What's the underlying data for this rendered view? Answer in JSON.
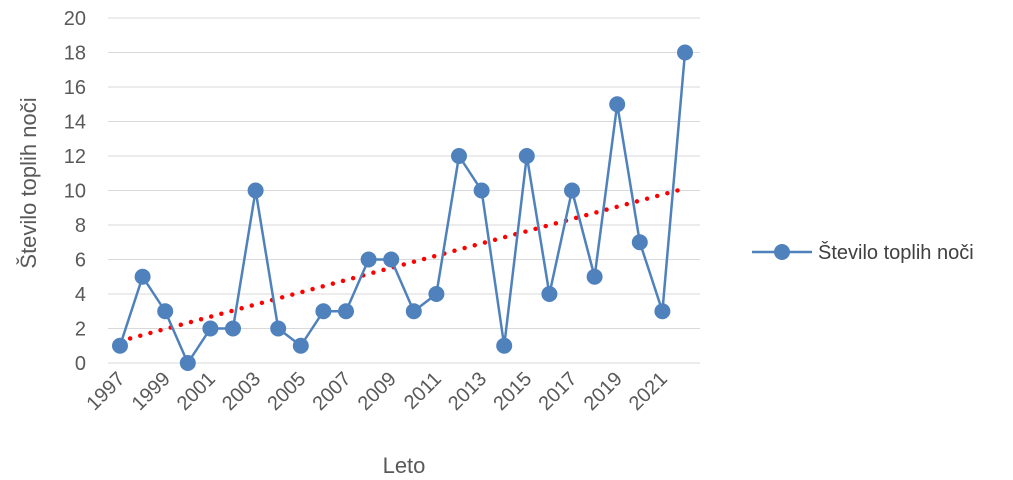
{
  "chart_data": {
    "type": "line",
    "xlabel": "Leto",
    "ylabel": "Število toplih noči",
    "ylim": [
      0,
      20
    ],
    "y_ticks": [
      0,
      2,
      4,
      6,
      8,
      10,
      12,
      14,
      16,
      18,
      20
    ],
    "x_tick_labels": [
      "1997",
      "1999",
      "2001",
      "2003",
      "2005",
      "2007",
      "2009",
      "2011",
      "2013",
      "2015",
      "2017",
      "2019",
      "2021"
    ],
    "grid": "horizontal",
    "legend_position": "right",
    "x": [
      1997,
      1998,
      1999,
      2000,
      2001,
      2002,
      2003,
      2004,
      2005,
      2006,
      2007,
      2008,
      2009,
      2010,
      2011,
      2012,
      2013,
      2014,
      2015,
      2016,
      2017,
      2018,
      2019,
      2020,
      2021,
      2022
    ],
    "series": [
      {
        "name": "Število toplih noči",
        "color": "#4f81bd",
        "values": [
          1,
          5,
          3,
          0,
          2,
          2,
          10,
          2,
          1,
          3,
          3,
          6,
          6,
          3,
          4,
          12,
          10,
          1,
          12,
          4,
          10,
          5,
          15,
          7,
          3,
          18
        ]
      }
    ],
    "trendline": {
      "type": "linear",
      "color": "#ff0000",
      "style": "dotted"
    }
  }
}
